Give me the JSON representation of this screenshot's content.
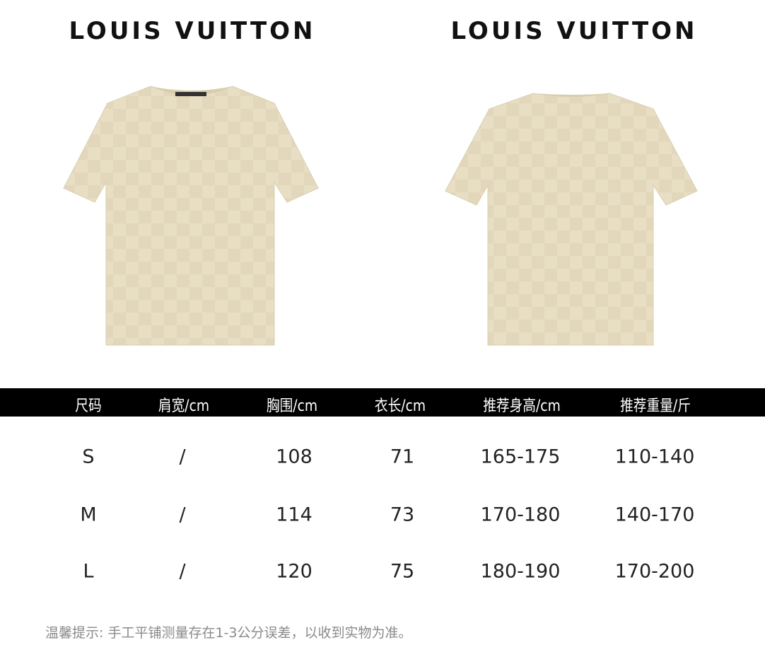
{
  "brand_left": "LOUIS VUITTON",
  "brand_right": "LOUIS VUITTON",
  "shirt_color": "#e8dec3",
  "images": [
    {
      "name": "front-view"
    },
    {
      "name": "back-view"
    }
  ],
  "table": {
    "headers": [
      "尺码",
      "肩宽/cm",
      "胸围/cm",
      "衣长/cm",
      "推荐身高/cm",
      "推荐重量/斤"
    ],
    "rows": [
      [
        "S",
        "/",
        "108",
        "71",
        "165-175",
        "110-140"
      ],
      [
        "M",
        "/",
        "114",
        "73",
        "170-180",
        "140-170"
      ],
      [
        "L",
        "/",
        "120",
        "75",
        "180-190",
        "170-200"
      ]
    ]
  },
  "note": "温馨提示: 手工平铺测量存在1-3公分误差，以收到实物为准。"
}
